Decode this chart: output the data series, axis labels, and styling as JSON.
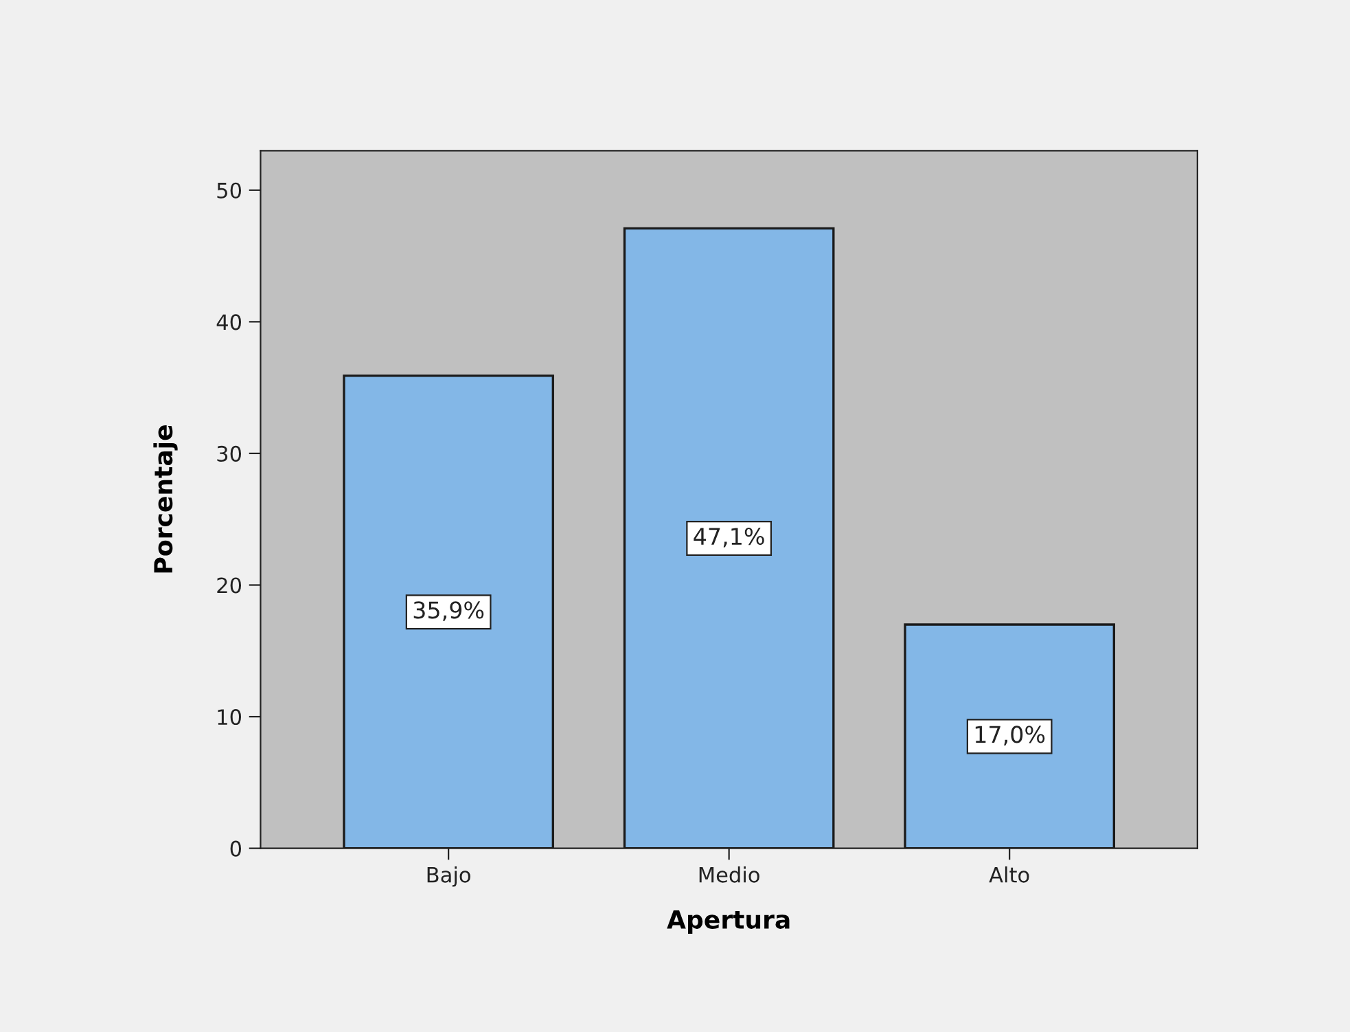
{
  "chart_data": {
    "type": "bar",
    "xlabel": "Apertura",
    "ylabel": "Porcentaje",
    "categories": [
      "Bajo",
      "Medio",
      "Alto"
    ],
    "series": [
      {
        "color": "#83b7e7",
        "values": [
          35.9,
          47.1,
          17.0
        ],
        "value_labels": [
          "35,9%",
          "47,1%",
          "17,0%"
        ]
      }
    ],
    "ylim": [
      0,
      53
    ],
    "yticks": [
      0,
      10,
      20,
      30,
      40,
      50
    ],
    "grid": false,
    "legend": false
  }
}
